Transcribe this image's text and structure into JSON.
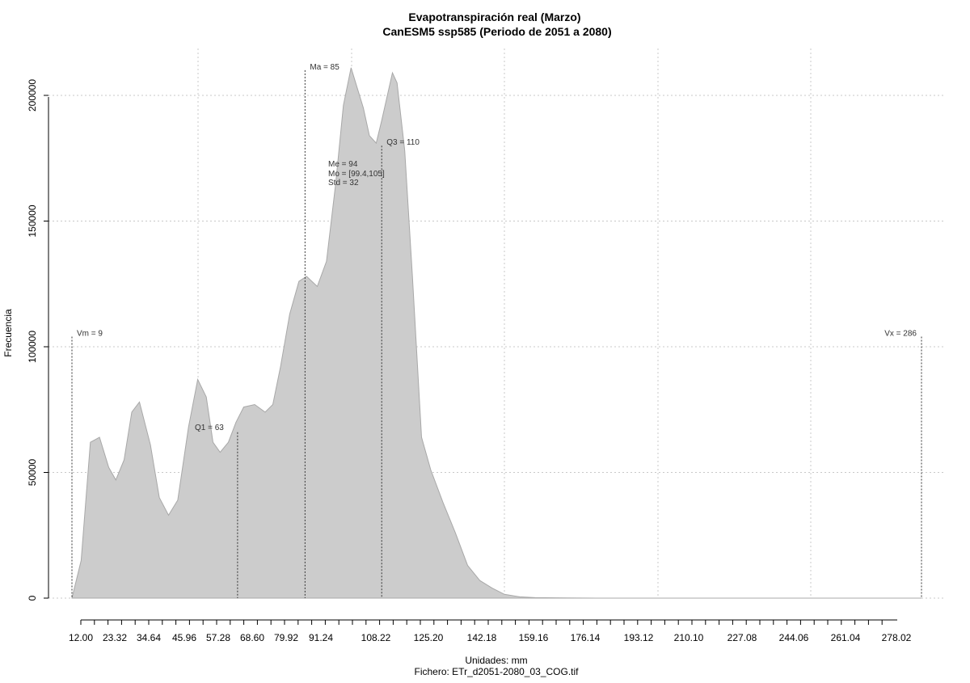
{
  "chart_data": {
    "type": "area",
    "title": "Evapotranspiración real (Marzo)",
    "subtitle": "CanESM5 ssp585 (Periodo de 2051 a 2080)",
    "xlabel": "Unidades: mm",
    "caption": "Fichero: ETr_d2051-2080_03_COG.tif",
    "ylabel": "Frecuencia",
    "xlim": [
      9,
      286
    ],
    "ylim": [
      0,
      210000
    ],
    "x_tick_labels": [
      "12.00",
      "23.32",
      "34.64",
      "45.96",
      "57.28",
      "68.60",
      "79.92",
      "91.24",
      "108.22",
      "125.20",
      "142.18",
      "159.16",
      "176.14",
      "193.12",
      "210.10",
      "227.08",
      "244.06",
      "261.04",
      "278.02"
    ],
    "y_ticks": [
      0,
      50000,
      100000,
      150000,
      200000
    ],
    "y_tick_labels": [
      "0",
      "50000",
      "100000",
      "150000",
      "200000"
    ],
    "grid": true,
    "fill_color": "#cccccc",
    "line_color": "#a8a8a8",
    "density": {
      "x": [
        9,
        12,
        15,
        18,
        21,
        23.3,
        26,
        28.5,
        31,
        34.6,
        37.5,
        40.5,
        43.5,
        47,
        50,
        52.8,
        55,
        57.3,
        60,
        62.5,
        65,
        68.6,
        72,
        74.5,
        77,
        80,
        83,
        85.5,
        89,
        92,
        95,
        97.5,
        100,
        104,
        106,
        108.2,
        110,
        113.5,
        115,
        117.5,
        120,
        123,
        126,
        130,
        134,
        138,
        142,
        146,
        150,
        155,
        160,
        170,
        180,
        200,
        240,
        286
      ],
      "y": [
        0,
        15000,
        62000,
        64000,
        52000,
        47000,
        55000,
        74000,
        78000,
        61000,
        40000,
        33000,
        39000,
        68000,
        87000,
        80000,
        62000,
        58000,
        62000,
        70000,
        76000,
        77000,
        74000,
        77000,
        92000,
        113000,
        126000,
        128000,
        124000,
        134000,
        165000,
        196000,
        211000,
        195000,
        184000,
        181000,
        190000,
        209000,
        205000,
        178000,
        128000,
        64000,
        51000,
        38000,
        26000,
        13000,
        7000,
        4000,
        1500,
        500,
        200,
        50,
        0,
        0,
        0,
        0
      ]
    },
    "markers": [
      {
        "label": "Vm = 9",
        "x": 9,
        "y": 104000
      },
      {
        "label": "Q1 = 63",
        "x": 63,
        "y": 66000
      },
      {
        "label": "Ma = 85",
        "x": 85,
        "y": 210000
      },
      {
        "label": "Q3 = 110",
        "x": 110,
        "y": 180000
      },
      {
        "label": "Vx = 286",
        "x": 286,
        "y": 104000
      }
    ],
    "stats": {
      "Me": "Me = 94",
      "Mo": "Mo = [99.4,105]",
      "Std": "Std = 32"
    }
  }
}
